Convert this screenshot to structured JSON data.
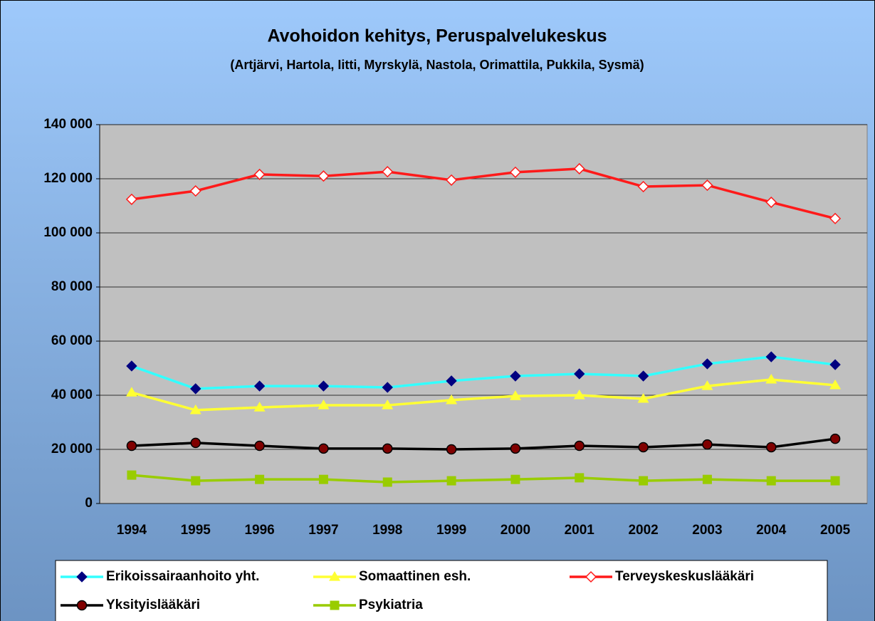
{
  "chart_data": {
    "type": "line",
    "title": "Avohoidon kehitys, Peruspalvelukeskus",
    "subtitle": "(Artjärvi, Hartola, Iitti, Myrskylä, Nastola, Orimattila, Pukkila, Sysmä)",
    "categories": [
      "1994",
      "1995",
      "1996",
      "1997",
      "1998",
      "1999",
      "2000",
      "2001",
      "2002",
      "2003",
      "2004",
      "2005"
    ],
    "series": [
      {
        "name": "Erikoissairaanhoito yht.",
        "color": "#33ffff",
        "marker": "diamond",
        "marker_color": "#000080",
        "values": [
          50800,
          42400,
          43400,
          43400,
          42900,
          45300,
          47100,
          47900,
          47100,
          51600,
          54200,
          51300
        ]
      },
      {
        "name": "Somaattinen esh.",
        "color": "#ffff33",
        "marker": "triangle",
        "marker_color": "#ffff33",
        "values": [
          41000,
          34500,
          35500,
          36300,
          36300,
          38200,
          39700,
          40000,
          38700,
          43400,
          45800,
          43700
        ]
      },
      {
        "name": "Terveyskeskuslääkäri",
        "color": "#ff1a1a",
        "marker": "hollow-diamond",
        "marker_color": "#ff1a1a",
        "values": [
          112400,
          115500,
          121600,
          121000,
          122600,
          119500,
          122400,
          123700,
          117100,
          117600,
          111300,
          105300
        ]
      },
      {
        "name": "Yksityislääkäri",
        "color": "#000000",
        "marker": "circle",
        "marker_color": "#800000",
        "values": [
          21300,
          22400,
          21300,
          20300,
          20300,
          20000,
          20300,
          21300,
          20800,
          21800,
          20800,
          23900
        ]
      },
      {
        "name": "Psykiatria",
        "color": "#99cc00",
        "marker": "square",
        "marker_color": "#99cc00",
        "values": [
          10500,
          8400,
          8900,
          8900,
          7900,
          8400,
          8900,
          9500,
          8400,
          8900,
          8400,
          8400
        ]
      }
    ],
    "ylim": [
      0,
      140000
    ],
    "yticks": [
      0,
      {
        "value": 20000,
        "label": "20 000"
      },
      {
        "value": 40000,
        "label": "40 000"
      },
      {
        "value": 60000,
        "label": "60 000"
      },
      {
        "value": 80000,
        "label": "80 000"
      },
      {
        "value": 100000,
        "label": "100 000"
      },
      {
        "value": 120000,
        "label": "120 000"
      },
      {
        "value": 140000,
        "label": "140 000"
      }
    ],
    "grid": true,
    "legend": "bottom"
  }
}
